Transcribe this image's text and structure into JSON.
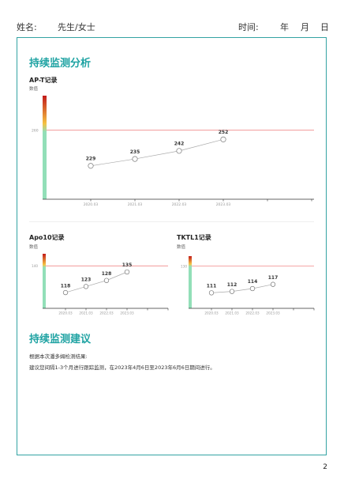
{
  "header": {
    "name_label": "姓名:",
    "honorific": "先生/女士",
    "time_label": "时间:",
    "year_label": "年",
    "month_label": "月",
    "day_label": "日"
  },
  "sections": {
    "monitoring_title": "持续监测分析",
    "advice_title": "持续监测建议"
  },
  "advice": {
    "line1": "根据本次潘多姆检测结果:",
    "line2": "建议您间隔1-3个月进行跟踪监测，在2023年4月6日至2023年6月6日期间进行。"
  },
  "page_number": "2",
  "colors": {
    "accent": "#1fa3a3",
    "threshold_line": "#f08a8a",
    "bar_high": "#c21a1a",
    "bar_mid": "#f5c242",
    "bar_low": "#92dfb8"
  },
  "chart_data": [
    {
      "type": "line",
      "title": "AP-T记录",
      "ylabel": "数值",
      "x": [
        "2020.03",
        "2021.03",
        "2022.03",
        "2023.03"
      ],
      "series": [
        {
          "values": [
            229,
            235,
            242,
            252
          ]
        }
      ],
      "threshold": 260,
      "threshold_label": "260",
      "ylim": [
        200,
        290
      ],
      "legend": "none"
    },
    {
      "type": "line",
      "title": "Apo10记录",
      "ylabel": "数值",
      "x": [
        "2020.03",
        "2021.03",
        "2022.03",
        "2023.03"
      ],
      "series": [
        {
          "values": [
            118,
            123,
            128,
            135
          ]
        }
      ],
      "threshold": 140,
      "threshold_label": "140",
      "ylim": [
        105,
        150
      ],
      "legend": "none"
    },
    {
      "type": "line",
      "title": "TKTL1记录",
      "ylabel": "数值",
      "x": [
        "2020.03",
        "2021.03",
        "2022.03",
        "2023.03"
      ],
      "series": [
        {
          "values": [
            111,
            112,
            114,
            117
          ]
        }
      ],
      "threshold": 130,
      "threshold_label": "130",
      "ylim": [
        100,
        137
      ],
      "legend": "none"
    }
  ]
}
